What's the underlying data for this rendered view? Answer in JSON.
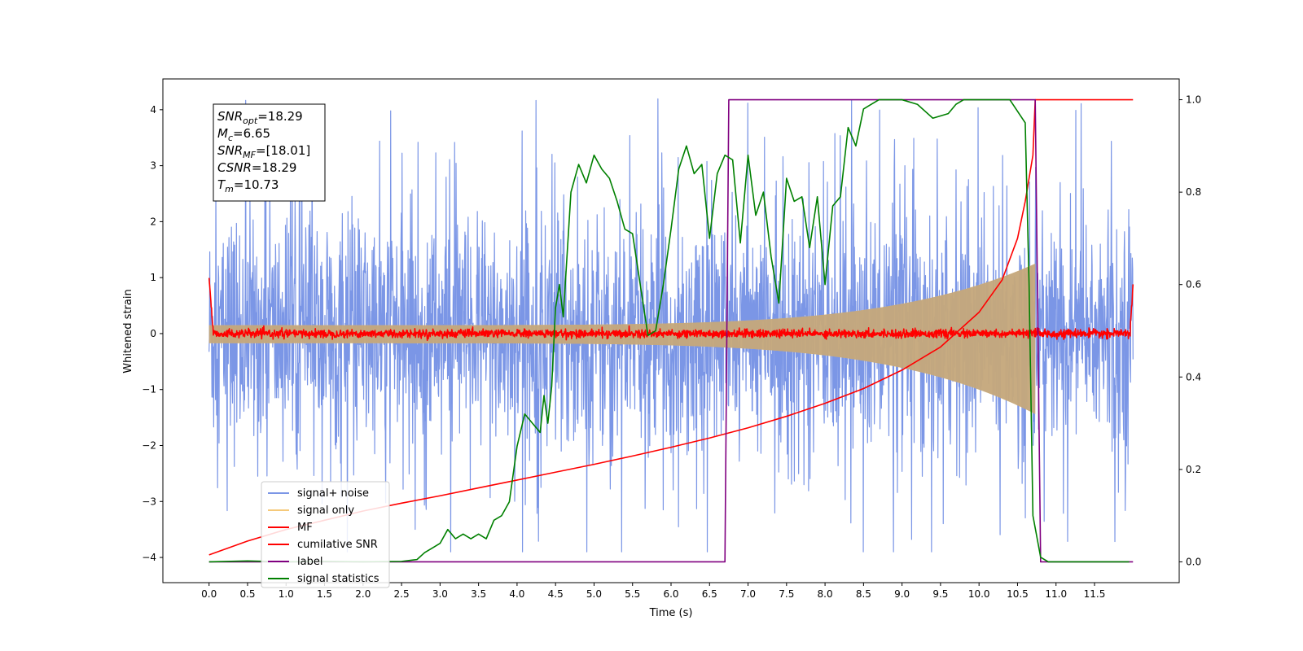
{
  "chart_data": {
    "type": "line",
    "xlabel": "Time (s)",
    "ylabel": "Whitened strain",
    "xlim": [
      -0.6,
      12.6
    ],
    "ylim": [
      -4.45,
      4.55
    ],
    "y2lim": [
      -0.045,
      1.045
    ],
    "xticks": [
      "0.0",
      "0.5",
      "1.0",
      "1.5",
      "2.0",
      "2.5",
      "3.0",
      "3.5",
      "4.0",
      "4.5",
      "5.0",
      "5.5",
      "6.0",
      "6.5",
      "7.0",
      "7.5",
      "8.0",
      "8.5",
      "9.0",
      "9.5",
      "10.0",
      "10.5",
      "11.0",
      "11.5"
    ],
    "yticks": [
      "−4",
      "−3",
      "−2",
      "−1",
      "0",
      "1",
      "2",
      "3",
      "4"
    ],
    "y2ticks": [
      "0.0",
      "0.2",
      "0.4",
      "0.6",
      "0.8",
      "1.0"
    ],
    "grid": false,
    "legend_position": "lower-left",
    "annotation": {
      "lines": [
        {
          "sym": "SNR",
          "sub": "opt",
          "value": "=18.29"
        },
        {
          "sym": "M",
          "sub": "c",
          "value": "=6.65"
        },
        {
          "sym": "SNR",
          "sub": "MF",
          "value": "=[18.01]"
        },
        {
          "sym": "CSNR",
          "sub": "",
          "value": "=18.29"
        },
        {
          "sym": "T",
          "sub": "m",
          "value": "=10.73"
        }
      ]
    },
    "series": [
      {
        "name": "signal+ noise",
        "color": "#7b96e6",
        "axis": "left",
        "style": "noise",
        "x_range": [
          0,
          12.0
        ],
        "amplitude_envelope": 1.9,
        "spike_max": 4.2
      },
      {
        "name": "signal only",
        "color": "#f5c97a",
        "axis": "left",
        "style": "chirp",
        "x_range": [
          0,
          10.73
        ],
        "amplitude_start": 0.15,
        "amplitude_end": 1.25
      },
      {
        "name": "MF",
        "color": "#ff0000",
        "axis": "left",
        "style": "noise",
        "x_range": [
          0,
          12.0
        ],
        "amplitude_envelope": 0.06,
        "edge_start": 1.0,
        "edge_end": 0.9
      },
      {
        "name": "cumilative SNR",
        "color": "#ff0000",
        "axis": "right",
        "x": [
          0,
          0.5,
          1,
          1.5,
          2,
          2.5,
          3,
          3.5,
          4,
          4.5,
          5,
          5.5,
          6,
          6.5,
          7,
          7.5,
          8,
          8.5,
          9,
          9.5,
          10,
          10.3,
          10.5,
          10.6,
          10.7,
          10.73,
          12.0
        ],
        "y": [
          0.015,
          0.045,
          0.07,
          0.09,
          0.11,
          0.127,
          0.143,
          0.16,
          0.177,
          0.194,
          0.211,
          0.229,
          0.248,
          0.268,
          0.29,
          0.315,
          0.343,
          0.375,
          0.415,
          0.465,
          0.54,
          0.61,
          0.7,
          0.78,
          0.88,
          1.0,
          1.0
        ]
      },
      {
        "name": "label",
        "color": "#800080",
        "axis": "right",
        "x": [
          0,
          6.7,
          6.75,
          10.73,
          10.8,
          12.0
        ],
        "y": [
          0.0,
          0.0,
          1.0,
          1.0,
          0.0,
          0.0
        ]
      },
      {
        "name": "signal statistics",
        "color": "#008000",
        "axis": "right",
        "x": [
          0,
          0.5,
          1,
          1.5,
          2,
          2.5,
          2.7,
          2.8,
          2.9,
          3.0,
          3.1,
          3.2,
          3.3,
          3.4,
          3.5,
          3.6,
          3.7,
          3.8,
          3.9,
          4.0,
          4.1,
          4.2,
          4.3,
          4.35,
          4.4,
          4.45,
          4.5,
          4.55,
          4.6,
          4.7,
          4.8,
          4.9,
          5.0,
          5.1,
          5.2,
          5.3,
          5.4,
          5.5,
          5.6,
          5.7,
          5.8,
          5.9,
          6.0,
          6.1,
          6.2,
          6.3,
          6.4,
          6.5,
          6.6,
          6.7,
          6.8,
          6.9,
          7.0,
          7.1,
          7.2,
          7.3,
          7.4,
          7.5,
          7.6,
          7.7,
          7.8,
          7.9,
          8.0,
          8.1,
          8.2,
          8.3,
          8.4,
          8.5,
          8.6,
          8.7,
          8.8,
          9.0,
          9.2,
          9.4,
          9.6,
          9.7,
          9.8,
          10.0,
          10.2,
          10.4,
          10.6,
          10.65,
          10.7,
          10.8,
          10.9,
          11.0,
          11.5,
          11.95
        ],
        "y": [
          0.0,
          0.002,
          0.0,
          0.001,
          0.0,
          0.001,
          0.005,
          0.02,
          0.03,
          0.04,
          0.07,
          0.05,
          0.06,
          0.05,
          0.06,
          0.05,
          0.09,
          0.1,
          0.13,
          0.25,
          0.32,
          0.3,
          0.28,
          0.36,
          0.3,
          0.38,
          0.55,
          0.6,
          0.53,
          0.8,
          0.86,
          0.82,
          0.88,
          0.85,
          0.83,
          0.78,
          0.72,
          0.71,
          0.6,
          0.49,
          0.5,
          0.6,
          0.72,
          0.85,
          0.9,
          0.84,
          0.86,
          0.7,
          0.84,
          0.88,
          0.87,
          0.69,
          0.88,
          0.75,
          0.8,
          0.66,
          0.56,
          0.83,
          0.78,
          0.79,
          0.68,
          0.79,
          0.6,
          0.77,
          0.79,
          0.94,
          0.9,
          0.98,
          0.99,
          1.0,
          1.0,
          1.0,
          0.99,
          0.96,
          0.97,
          0.99,
          1.0,
          1.0,
          1.0,
          1.0,
          0.95,
          0.6,
          0.1,
          0.01,
          0.0,
          0.0,
          0.0,
          0.0
        ]
      }
    ]
  }
}
